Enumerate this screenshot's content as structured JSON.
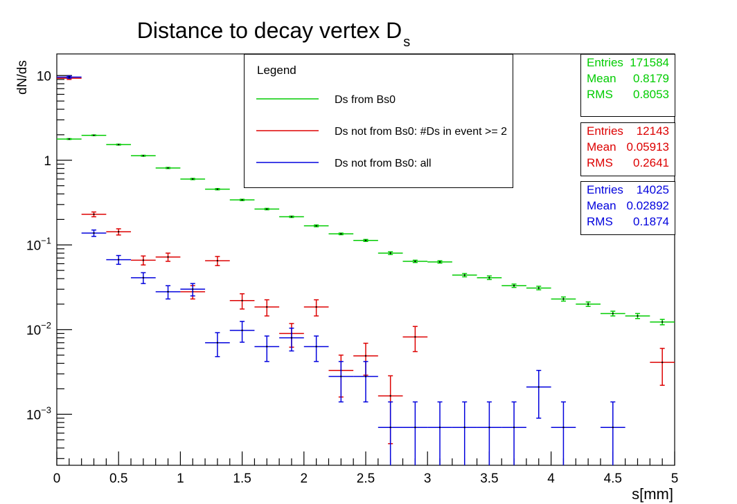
{
  "chart_data": {
    "type": "scatter",
    "title": "Distance to decay vertex D",
    "title_subscript": "s",
    "xlabel": "s[mm]",
    "ylabel": "dN/ds",
    "xlim": [
      0,
      5
    ],
    "ylim": [
      0.00025,
      18
    ],
    "y_scale": "log",
    "grid": false,
    "x_ticks": [
      "0",
      "0.5",
      "1",
      "1.5",
      "2",
      "2.5",
      "3",
      "3.5",
      "4",
      "4.5",
      "5"
    ],
    "y_ticks": [
      {
        "value": 10,
        "base": "10",
        "exp": ""
      },
      {
        "value": 1,
        "base": "1",
        "exp": ""
      },
      {
        "value": 0.1,
        "base": "10",
        "exp": "−1"
      },
      {
        "value": 0.01,
        "base": "10",
        "exp": "−2"
      },
      {
        "value": 0.001,
        "base": "10",
        "exp": "−3"
      }
    ],
    "bin_half_width": 0.1,
    "legend": {
      "title": "Legend",
      "placement": "top-center",
      "entries": [
        "Ds from Bs0",
        "Ds not from Bs0: #Ds in event >= 2",
        "Ds not from Bs0: all"
      ]
    },
    "series": [
      {
        "name": "Ds from Bs0",
        "color": "#00cc00",
        "stats": {
          "Entries": "171584",
          "Mean": "0.8179",
          "RMS": "0.8053"
        },
        "points": [
          {
            "x": 0.1,
            "y": 1.78,
            "err": 0.02
          },
          {
            "x": 0.3,
            "y": 1.97,
            "err": 0.02
          },
          {
            "x": 0.5,
            "y": 1.53,
            "err": 0.02
          },
          {
            "x": 0.7,
            "y": 1.13,
            "err": 0.015
          },
          {
            "x": 0.9,
            "y": 0.81,
            "err": 0.012
          },
          {
            "x": 1.1,
            "y": 0.6,
            "err": 0.01
          },
          {
            "x": 1.3,
            "y": 0.455,
            "err": 0.008
          },
          {
            "x": 1.5,
            "y": 0.34,
            "err": 0.006
          },
          {
            "x": 1.7,
            "y": 0.265,
            "err": 0.005
          },
          {
            "x": 1.9,
            "y": 0.215,
            "err": 0.004
          },
          {
            "x": 2.1,
            "y": 0.168,
            "err": 0.004
          },
          {
            "x": 2.3,
            "y": 0.135,
            "err": 0.003
          },
          {
            "x": 2.5,
            "y": 0.113,
            "err": 0.003
          },
          {
            "x": 2.7,
            "y": 0.08,
            "err": 0.003
          },
          {
            "x": 2.9,
            "y": 0.064,
            "err": 0.002
          },
          {
            "x": 3.1,
            "y": 0.063,
            "err": 0.002
          },
          {
            "x": 3.3,
            "y": 0.044,
            "err": 0.002
          },
          {
            "x": 3.5,
            "y": 0.041,
            "err": 0.002
          },
          {
            "x": 3.7,
            "y": 0.033,
            "err": 0.0015
          },
          {
            "x": 3.9,
            "y": 0.031,
            "err": 0.0015
          },
          {
            "x": 4.1,
            "y": 0.023,
            "err": 0.0013
          },
          {
            "x": 4.3,
            "y": 0.02,
            "err": 0.0012
          },
          {
            "x": 4.5,
            "y": 0.0155,
            "err": 0.001
          },
          {
            "x": 4.7,
            "y": 0.0145,
            "err": 0.001
          },
          {
            "x": 4.9,
            "y": 0.0123,
            "err": 0.0009
          }
        ]
      },
      {
        "name": "Ds not from Bs0: #Ds in event >= 2",
        "color": "#dd0000",
        "stats": {
          "Entries": "12143",
          "Mean": "0.05913",
          "RMS": "0.2641"
        },
        "points": [
          {
            "x": 0.1,
            "y": 9.3,
            "err": 0.3
          },
          {
            "x": 0.3,
            "y": 0.23,
            "err": 0.015
          },
          {
            "x": 0.5,
            "y": 0.143,
            "err": 0.012
          },
          {
            "x": 0.7,
            "y": 0.066,
            "err": 0.008
          },
          {
            "x": 0.9,
            "y": 0.072,
            "err": 0.008
          },
          {
            "x": 1.1,
            "y": 0.028,
            "err": 0.005
          },
          {
            "x": 1.3,
            "y": 0.065,
            "err": 0.008
          },
          {
            "x": 1.5,
            "y": 0.022,
            "err": 0.0045
          },
          {
            "x": 1.7,
            "y": 0.0185,
            "err": 0.004
          },
          {
            "x": 1.9,
            "y": 0.009,
            "err": 0.0028
          },
          {
            "x": 2.1,
            "y": 0.0185,
            "err": 0.004
          },
          {
            "x": 2.3,
            "y": 0.0033,
            "err": 0.0017
          },
          {
            "x": 2.5,
            "y": 0.0049,
            "err": 0.002
          },
          {
            "x": 2.7,
            "y": 0.00165,
            "err": 0.0012
          },
          {
            "x": 2.9,
            "y": 0.0082,
            "err": 0.0027
          },
          {
            "x": 4.9,
            "y": 0.0041,
            "err": 0.0019
          }
        ]
      },
      {
        "name": "Ds not from Bs0: all",
        "color": "#0000dd",
        "stats": {
          "Entries": "14025",
          "Mean": "0.02892",
          "RMS": "0.1874"
        },
        "points": [
          {
            "x": 0.1,
            "y": 9.6,
            "err": 0.3
          },
          {
            "x": 0.3,
            "y": 0.138,
            "err": 0.012
          },
          {
            "x": 0.5,
            "y": 0.067,
            "err": 0.008
          },
          {
            "x": 0.7,
            "y": 0.041,
            "err": 0.006
          },
          {
            "x": 0.9,
            "y": 0.028,
            "err": 0.005
          },
          {
            "x": 1.1,
            "y": 0.03,
            "err": 0.005
          },
          {
            "x": 1.3,
            "y": 0.007,
            "err": 0.0022
          },
          {
            "x": 1.5,
            "y": 0.0098,
            "err": 0.0027
          },
          {
            "x": 1.7,
            "y": 0.0063,
            "err": 0.0021
          },
          {
            "x": 1.9,
            "y": 0.008,
            "err": 0.0024
          },
          {
            "x": 2.1,
            "y": 0.0063,
            "err": 0.0021
          },
          {
            "x": 2.3,
            "y": 0.0028,
            "err": 0.0014
          },
          {
            "x": 2.5,
            "y": 0.0028,
            "err": 0.0014
          },
          {
            "x": 2.7,
            "y": 0.0007,
            "err": 0.0007
          },
          {
            "x": 2.9,
            "y": 0.0007,
            "err": 0.0007
          },
          {
            "x": 3.1,
            "y": 0.0007,
            "err": 0.0007
          },
          {
            "x": 3.3,
            "y": 0.0007,
            "err": 0.0007
          },
          {
            "x": 3.5,
            "y": 0.0007,
            "err": 0.0007
          },
          {
            "x": 3.7,
            "y": 0.0007,
            "err": 0.0007
          },
          {
            "x": 3.9,
            "y": 0.0021,
            "err": 0.0012
          },
          {
            "x": 4.1,
            "y": 0.0007,
            "err": 0.0007
          },
          {
            "x": 4.5,
            "y": 0.0007,
            "err": 0.0007
          }
        ]
      }
    ]
  }
}
